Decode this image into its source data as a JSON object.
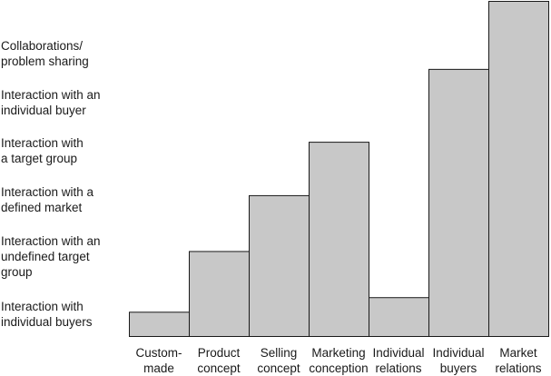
{
  "chart_data": {
    "type": "bar",
    "title": "",
    "xlabel": "",
    "ylabel": "",
    "categories": [
      "Custom-\nmade",
      "Product\nconcept",
      "Selling\nconcept",
      "Marketing\nconception",
      "Individual\nrelations",
      "Individual\nbuyers",
      "Market\nrelations"
    ],
    "y_levels": [
      "Interaction with\nindividual buyers",
      "Interaction with an\nundefined target\ngroup",
      "Interaction with a\ndefined market",
      "Interaction with\na target group",
      "Interaction with an\nindividual buyer",
      "Collaborations/\nproblem sharing"
    ],
    "values": [
      0.5,
      1.75,
      2.9,
      4.0,
      0.8,
      5.5,
      6.9
    ],
    "ylim": [
      0,
      6.9
    ],
    "bar_color": "#c8c8c8",
    "edge_color": "#1a1a1a",
    "grid": false
  }
}
